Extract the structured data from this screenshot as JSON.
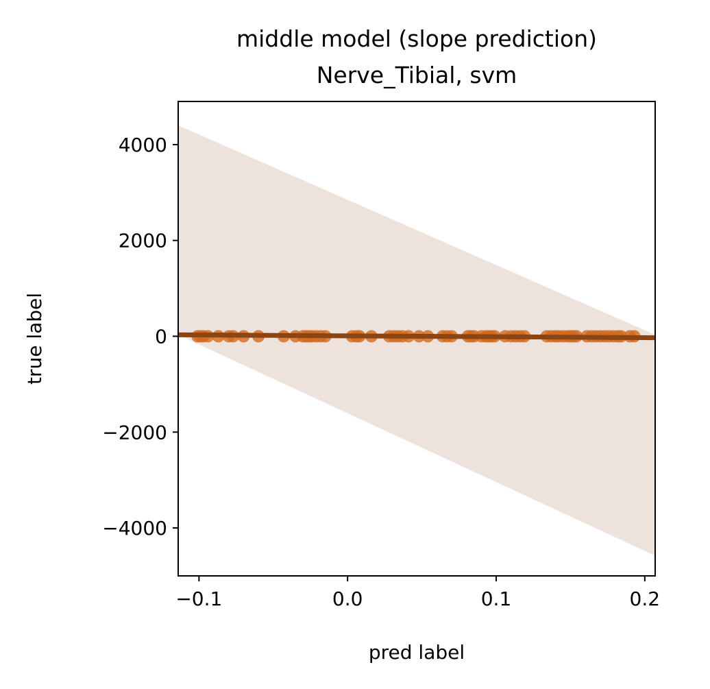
{
  "chart_data": {
    "type": "scatter",
    "title": "middle model (slope prediction)",
    "subtitle": "Nerve_Tibial, svm",
    "xlabel": "pred label",
    "ylabel": "true label",
    "xlim": [
      -0.114,
      0.207
    ],
    "ylim": [
      -5000,
      4900
    ],
    "xticks": [
      -0.1,
      0.0,
      0.1,
      0.2
    ],
    "xtick_labels": [
      "−0.1",
      "0.0",
      "0.1",
      "0.2"
    ],
    "yticks": [
      -4000,
      -2000,
      0,
      2000,
      4000
    ],
    "ytick_labels": [
      "−4000",
      "−2000",
      "0",
      "2000",
      "4000"
    ],
    "grid": false,
    "legend": "none",
    "series": [
      {
        "kind": "points",
        "color": "#d2691e",
        "x": [
          -0.101,
          -0.099,
          -0.097,
          -0.094,
          -0.087,
          -0.08,
          -0.077,
          -0.07,
          -0.06,
          -0.043,
          -0.035,
          -0.03,
          -0.028,
          -0.026,
          -0.024,
          -0.021,
          -0.018,
          -0.015,
          0.003,
          0.006,
          0.008,
          0.016,
          0.028,
          0.031,
          0.034,
          0.037,
          0.041,
          0.048,
          0.054,
          0.064,
          0.067,
          0.07,
          0.081,
          0.083,
          0.085,
          0.09,
          0.093,
          0.095,
          0.097,
          0.099,
          0.106,
          0.11,
          0.113,
          0.116,
          0.119,
          0.134,
          0.137,
          0.14,
          0.142,
          0.145,
          0.148,
          0.15,
          0.152,
          0.154,
          0.161,
          0.164,
          0.167,
          0.17,
          0.173,
          0.176,
          0.179,
          0.182,
          0.184,
          0.19,
          0.193
        ],
        "y": [
          0,
          0,
          0,
          0,
          0,
          0,
          0,
          0,
          0,
          0,
          0,
          0,
          0,
          0,
          0,
          0,
          0,
          0,
          0,
          0,
          0,
          0,
          0,
          0,
          0,
          0,
          0,
          0,
          0,
          0,
          0,
          0,
          0,
          0,
          0,
          0,
          0,
          0,
          0,
          0,
          0,
          0,
          0,
          0,
          0,
          0,
          0,
          0,
          0,
          0,
          0,
          0,
          0,
          0,
          0,
          0,
          0,
          0,
          0,
          0,
          0,
          0,
          0,
          0,
          0
        ]
      },
      {
        "kind": "regression-line",
        "color": "#8b4513",
        "x": [
          -0.114,
          0.207
        ],
        "y": [
          30,
          -30
        ]
      },
      {
        "kind": "confidence-band",
        "color": "#8b4513",
        "x": [
          -0.114,
          0.207
        ],
        "upper": [
          4400,
          30
        ],
        "lower": [
          30,
          -4580
        ]
      }
    ]
  }
}
